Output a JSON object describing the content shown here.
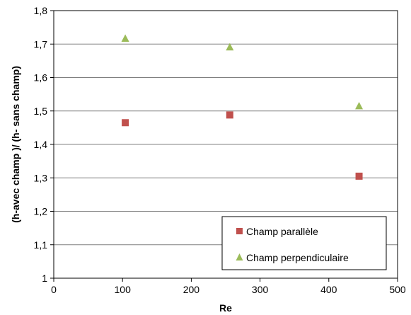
{
  "chart_data": {
    "type": "scatter",
    "title": "",
    "xlabel": "Re",
    "ylabel": "(h-avec  champ )/ (h- sans champ)",
    "xlim": [
      0,
      500
    ],
    "ylim": [
      1,
      1.8
    ],
    "xticks": [
      0,
      100,
      200,
      300,
      400,
      500
    ],
    "yticks": [
      1,
      1.1,
      1.2,
      1.3,
      1.4,
      1.5,
      1.6,
      1.7,
      1.8
    ],
    "xtick_labels": [
      "0",
      "100",
      "200",
      "300",
      "400",
      "500"
    ],
    "ytick_labels": [
      "1",
      "1,1",
      "1,2",
      "1,3",
      "1,4",
      "1,5",
      "1,6",
      "1,7",
      "1,8"
    ],
    "grid": "horizontal",
    "legend_position": "bottom-right",
    "series": [
      {
        "name": "Champ parallèle",
        "marker": "square",
        "color": "#c0504d",
        "x": [
          104,
          256,
          444
        ],
        "y": [
          1.465,
          1.488,
          1.305
        ]
      },
      {
        "name": "Champ perpendiculaire",
        "marker": "triangle",
        "color": "#9bbb59",
        "x": [
          104,
          256,
          444
        ],
        "y": [
          1.718,
          1.692,
          1.516
        ]
      }
    ]
  }
}
